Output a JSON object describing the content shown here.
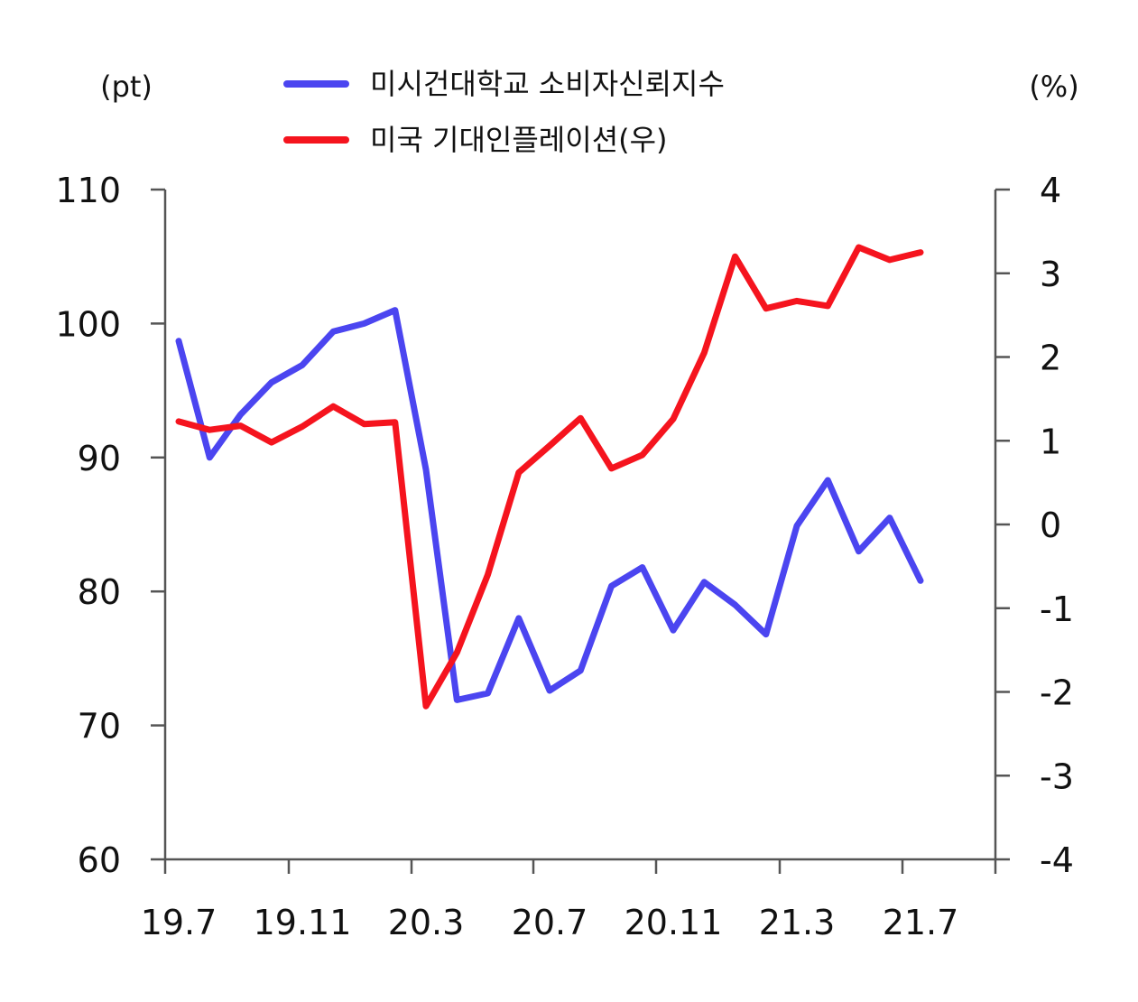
{
  "chart_data": {
    "type": "line",
    "title": "",
    "y_left_unit": "(pt)",
    "y_right_unit": "(%)",
    "ylim_left": [
      60,
      110
    ],
    "ylim_right": [
      -4,
      4
    ],
    "yticks_left": [
      "60",
      "70",
      "80",
      "90",
      "100",
      "110"
    ],
    "yticks_right": [
      "-4",
      "-3",
      "-2",
      "-1",
      "0",
      "1",
      "2",
      "3",
      "4"
    ],
    "xtick_labels": [
      "19.7",
      "19.11",
      "20.3",
      "20.7",
      "20.11",
      "21.3",
      "21.7"
    ],
    "x": [
      "19.7",
      "19.8",
      "19.9",
      "19.10",
      "19.11",
      "19.12",
      "20.1",
      "20.2",
      "20.3",
      "20.4",
      "20.5",
      "20.6",
      "20.7",
      "20.8",
      "20.9",
      "20.10",
      "20.11",
      "20.12",
      "21.1",
      "21.2",
      "21.3",
      "21.4",
      "21.5",
      "21.6",
      "21.7"
    ],
    "legend_position": "top",
    "grid": false,
    "series": [
      {
        "name": "미시건대학교 소비자신뢰지수",
        "axis": "left",
        "color": "#4B45F0",
        "values": [
          98.7,
          90.0,
          93.2,
          95.6,
          96.9,
          99.4,
          100.0,
          101.0,
          89.1,
          71.9,
          72.4,
          78.0,
          72.6,
          74.1,
          80.4,
          81.8,
          77.1,
          80.7,
          79.0,
          76.8,
          84.9,
          88.3,
          83.0,
          85.5,
          80.8
        ]
      },
      {
        "name": "미국 기대인플레이션(우)",
        "axis": "right",
        "color": "#F5141E",
        "values": [
          1.23,
          1.13,
          1.18,
          0.98,
          1.17,
          1.41,
          1.2,
          1.22,
          -2.17,
          -1.53,
          -0.6,
          0.62,
          0.94,
          1.27,
          0.67,
          0.83,
          1.26,
          2.05,
          3.2,
          2.58,
          2.67,
          2.61,
          3.31,
          3.16,
          3.25
        ]
      }
    ]
  }
}
